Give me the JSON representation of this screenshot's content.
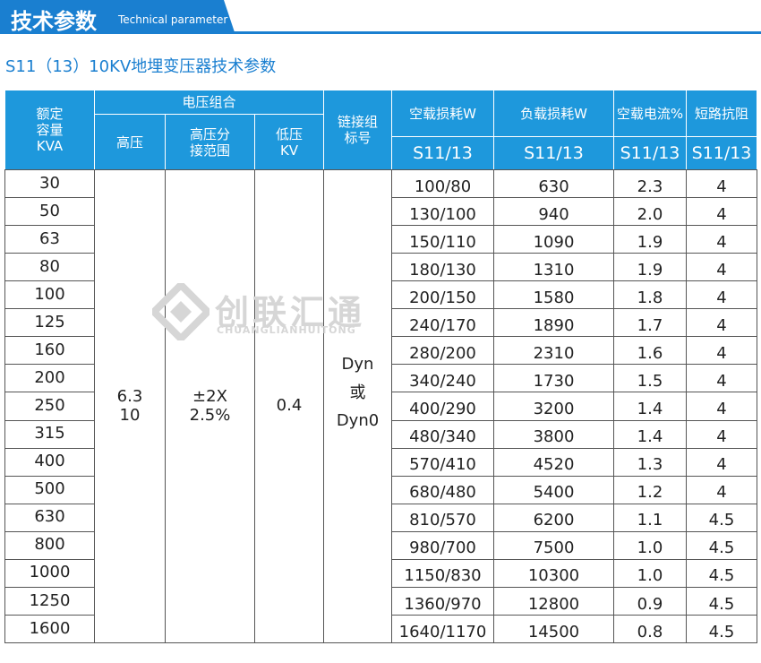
{
  "header": {
    "title": "技术参数",
    "subtitle": "Technical parameter"
  },
  "table": {
    "title": "S11（13）10KV地埋变压器技术参数",
    "group_header": "电压组合",
    "columns": [
      "额定\n容量\nKVA",
      "高压",
      "高压分\n接范围",
      "低压\nKV",
      "链接组\n标号",
      "空载损耗W",
      "负载损耗W",
      "空载电流%",
      "短路抗阻"
    ],
    "sub_headers": [
      "S11/13",
      "S11/13",
      "S11/13",
      "S11/13"
    ],
    "merged": [
      "6.3\n10",
      "±2X\n2.5%",
      "0.4",
      "Dyn\n或\nDyn0"
    ],
    "rows": [
      [
        "30",
        "100/80",
        "630",
        "2.3",
        "4"
      ],
      [
        "50",
        "130/100",
        "940",
        "2.0",
        "4"
      ],
      [
        "63",
        "150/110",
        "1090",
        "1.9",
        "4"
      ],
      [
        "80",
        "180/130",
        "1310",
        "1.9",
        "4"
      ],
      [
        "100",
        "200/150",
        "1580",
        "1.8",
        "4"
      ],
      [
        "125",
        "240/170",
        "1890",
        "1.7",
        "4"
      ],
      [
        "160",
        "280/200",
        "2310",
        "1.6",
        "4"
      ],
      [
        "200",
        "340/240",
        "1730",
        "1.5",
        "4"
      ],
      [
        "250",
        "400/290",
        "3200",
        "1.4",
        "4"
      ],
      [
        "315",
        "480/340",
        "3800",
        "1.4",
        "4"
      ],
      [
        "400",
        "570/410",
        "4520",
        "1.3",
        "4"
      ],
      [
        "500",
        "680/480",
        "5400",
        "1.2",
        "4"
      ],
      [
        "630",
        "810/570",
        "6200",
        "1.1",
        "4.5"
      ],
      [
        "800",
        "980/700",
        "7500",
        "1.0",
        "4.5"
      ],
      [
        "1000",
        "1150/830",
        "10300",
        "1.0",
        "4.5"
      ],
      [
        "1250",
        "1360/970",
        "12800",
        "0.9",
        "4.5"
      ],
      [
        "1600",
        "1640/1170",
        "14500",
        "0.8",
        "4.5"
      ]
    ]
  },
  "watermark": {
    "name": "创联汇通",
    "pinyin": "CHUANGLIANHUITONG"
  }
}
